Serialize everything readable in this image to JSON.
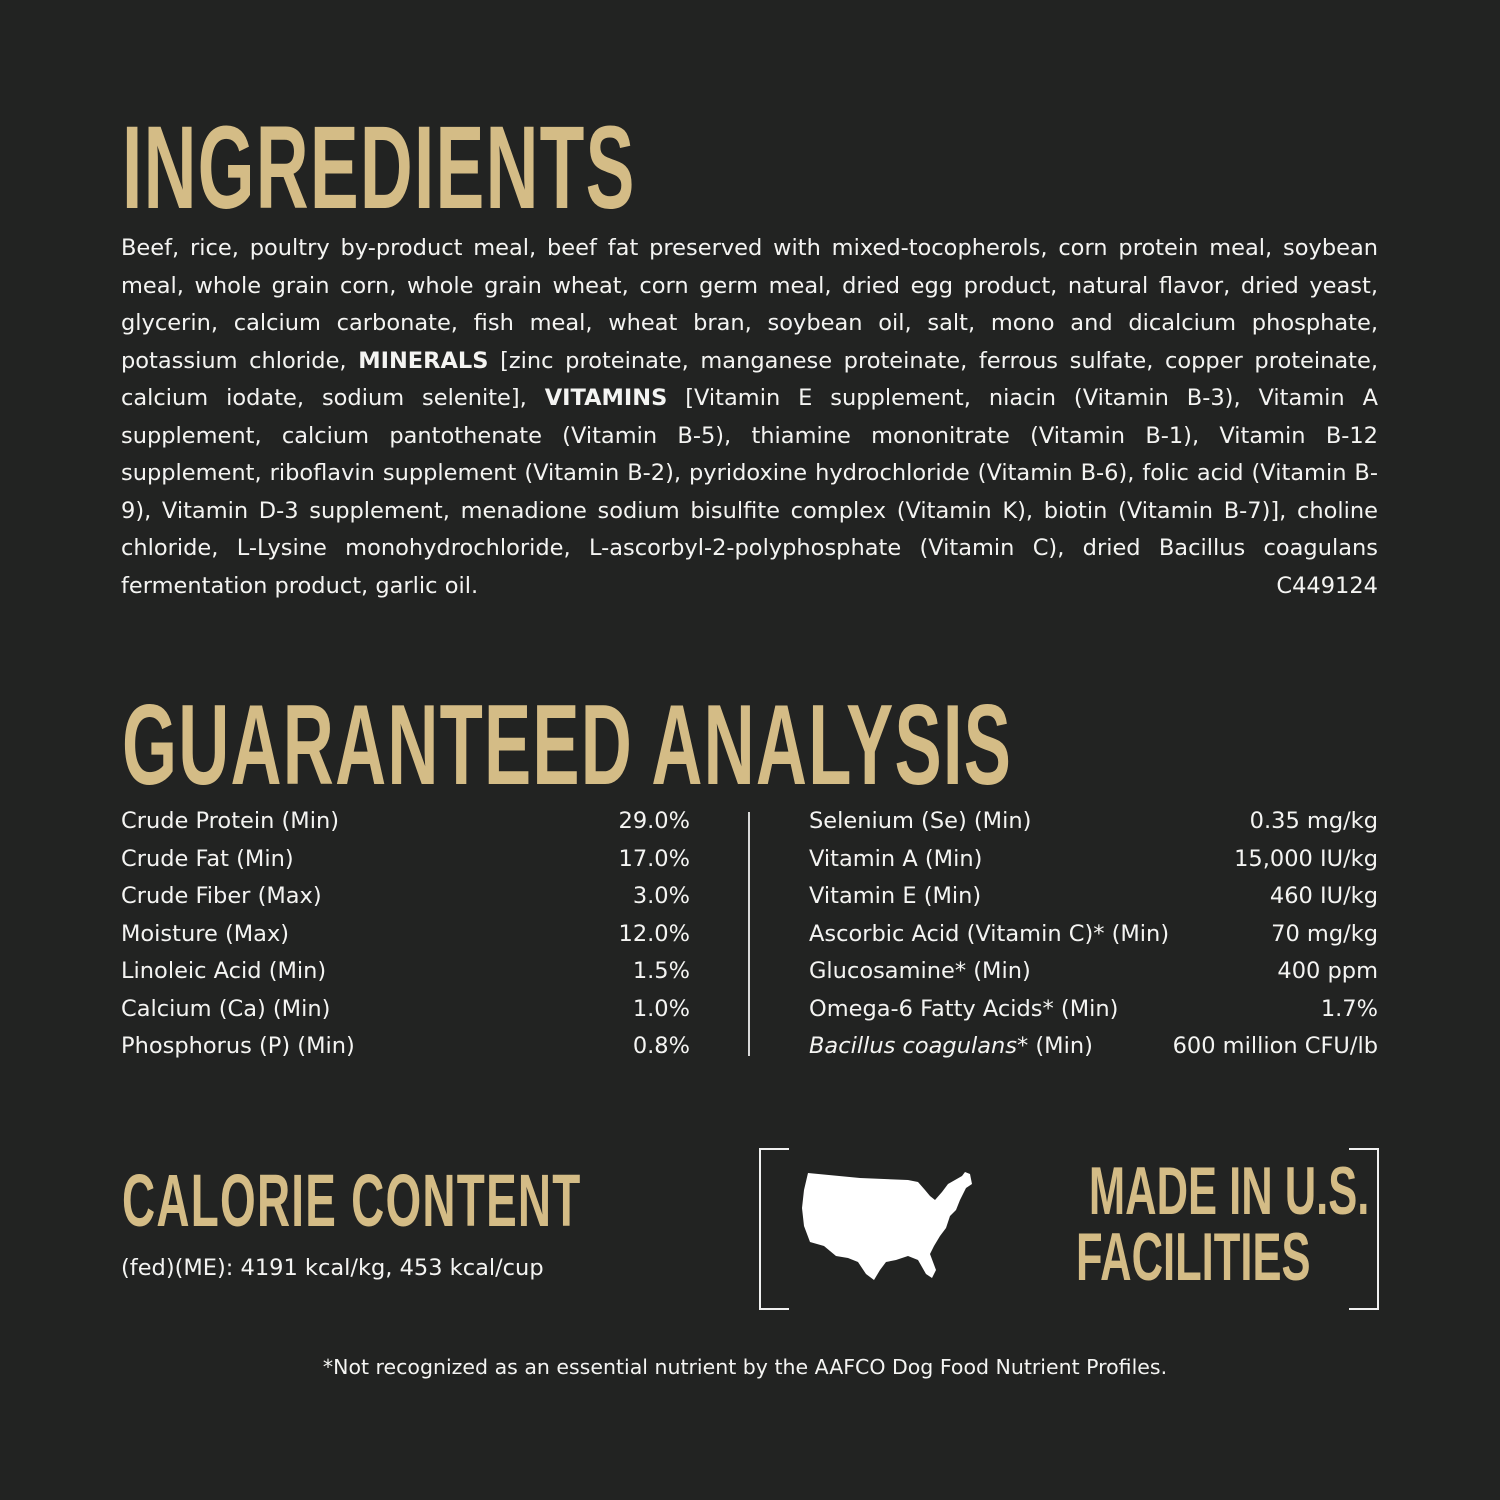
{
  "ingredients": {
    "title": "INGREDIENTS",
    "text_1": "Beef, rice, poultry by-product meal, beef fat preserved with mixed-tocopherols, corn protein meal, soybean meal, whole grain corn, whole grain wheat, corn germ meal, dried egg product, natural flavor, dried yeast, glycerin, calcium carbonate, fish meal, wheat bran, soybean oil, salt, mono and dicalcium phosphate, potassium chloride, ",
    "minerals_label": "MINERALS",
    "text_2": " [zinc proteinate, manganese proteinate, ferrous sulfate, copper proteinate, calcium iodate, sodium selenite], ",
    "vitamins_label": "VITAMINS",
    "text_3": " [Vitamin E supplement, niacin (Vitamin B-3), Vitamin A supplement, calcium pantothenate (Vitamin B-5), thiamine mononitrate (Vitamin B-1), Vitamin B-12 supplement, riboflavin supplement (Vitamin B-2), pyridoxine hydrochloride (Vitamin B-6), folic acid (Vitamin B-9), Vitamin D-3 supplement, menadione sodium bisulfite complex (Vitamin K), biotin (Vitamin B-7)], choline chloride, L-Lysine monohydrochloride, L-ascorbyl-2-polyphosphate (Vitamin C), dried Bacillus coagulans fermentation product, garlic oil.",
    "code": "C449124"
  },
  "analysis": {
    "title": "GUARANTEED ANALYSIS",
    "left": [
      {
        "label": "Crude Protein (Min)",
        "value": "29.0%"
      },
      {
        "label": "Crude Fat (Min)",
        "value": "17.0%"
      },
      {
        "label": "Crude Fiber (Max)",
        "value": "3.0%"
      },
      {
        "label": "Moisture (Max)",
        "value": "12.0%"
      },
      {
        "label": "Linoleic Acid (Min)",
        "value": "1.5%"
      },
      {
        "label": "Calcium (Ca) (Min)",
        "value": "1.0%"
      },
      {
        "label": "Phosphorus (P) (Min)",
        "value": "0.8%"
      }
    ],
    "right": [
      {
        "label": "Selenium (Se) (Min)",
        "value": "0.35 mg/kg"
      },
      {
        "label": "Vitamin A (Min)",
        "value": "15,000 IU/kg"
      },
      {
        "label": "Vitamin E (Min)",
        "value": "460 IU/kg"
      },
      {
        "label": "Ascorbic Acid (Vitamin C)* (Min)",
        "value": "70 mg/kg"
      },
      {
        "label": "Glucosamine* (Min)",
        "value": "400 ppm"
      },
      {
        "label": "Omega-6 Fatty Acids* (Min)",
        "value": "1.7%"
      },
      {
        "label_italic": "Bacillus coagulans",
        "label": "* (Min)",
        "value": "600 million CFU/lb"
      }
    ]
  },
  "calorie": {
    "title": "CALORIE CONTENT",
    "text": "(fed)(ME): 4191 kcal/kg, 453 kcal/cup"
  },
  "badge": {
    "icon": "usa-map-icon",
    "line_1": "MADE IN U.S.",
    "line_2": "FACILITIES"
  },
  "footnote": "*Not recognized as an essential nutrient by the AAFCO Dog Food Nutrient Profiles.",
  "colors": {
    "background": "#222322",
    "heading": "#d4bc86",
    "text": "#f4f4f2"
  }
}
